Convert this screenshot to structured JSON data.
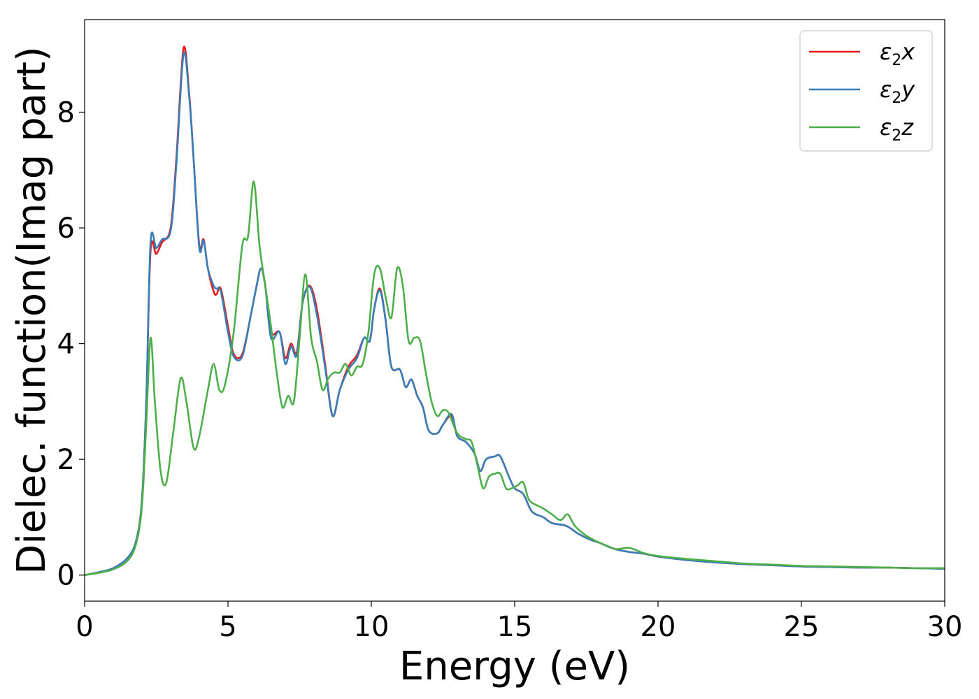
{
  "chart_data": {
    "type": "line",
    "xlabel": "Energy (eV)",
    "ylabel": "Dielec. function(Imag part)",
    "xlim": [
      0,
      30
    ],
    "ylim": [
      -0.45,
      9.6
    ],
    "x_ticks": [
      0,
      5,
      10,
      15,
      20,
      25,
      30
    ],
    "y_ticks": [
      0,
      2,
      4,
      6,
      8
    ],
    "grid": false,
    "legend_position": "top-right",
    "series": [
      {
        "name": "ε2x",
        "legend_main": "ε",
        "legend_sub": "2",
        "legend_tail": "x",
        "color": "#e41a1c",
        "points": [
          [
            0,
            0
          ],
          [
            0.5,
            0.05
          ],
          [
            1.0,
            0.12
          ],
          [
            1.5,
            0.3
          ],
          [
            1.8,
            0.6
          ],
          [
            2.0,
            1.3
          ],
          [
            2.15,
            3.0
          ],
          [
            2.3,
            5.6
          ],
          [
            2.5,
            5.55
          ],
          [
            2.7,
            5.75
          ],
          [
            3.0,
            6.0
          ],
          [
            3.2,
            7.2
          ],
          [
            3.45,
            9.1
          ],
          [
            3.65,
            8.3
          ],
          [
            3.8,
            7.2
          ],
          [
            4.0,
            5.7
          ],
          [
            4.15,
            5.8
          ],
          [
            4.3,
            5.3
          ],
          [
            4.5,
            4.9
          ],
          [
            4.6,
            4.85
          ],
          [
            4.75,
            4.95
          ],
          [
            5.0,
            4.3
          ],
          [
            5.2,
            3.82
          ],
          [
            5.5,
            3.82
          ],
          [
            5.8,
            4.5
          ],
          [
            6.0,
            5.0
          ],
          [
            6.15,
            5.3
          ],
          [
            6.3,
            5.0
          ],
          [
            6.5,
            4.2
          ],
          [
            6.8,
            4.2
          ],
          [
            7.0,
            3.75
          ],
          [
            7.2,
            4.0
          ],
          [
            7.4,
            3.85
          ],
          [
            7.6,
            4.7
          ],
          [
            7.85,
            5.0
          ],
          [
            8.1,
            4.6
          ],
          [
            8.4,
            3.6
          ],
          [
            8.65,
            2.75
          ],
          [
            8.9,
            3.2
          ],
          [
            9.2,
            3.6
          ],
          [
            9.5,
            3.8
          ],
          [
            9.75,
            4.1
          ],
          [
            9.95,
            4.05
          ],
          [
            10.1,
            4.6
          ],
          [
            10.3,
            4.95
          ],
          [
            10.5,
            4.4
          ],
          [
            10.7,
            3.6
          ],
          [
            11.0,
            3.55
          ],
          [
            11.2,
            3.25
          ],
          [
            11.4,
            3.38
          ],
          [
            11.6,
            3.1
          ],
          [
            11.8,
            2.9
          ],
          [
            12.0,
            2.5
          ],
          [
            12.3,
            2.45
          ],
          [
            12.5,
            2.6
          ],
          [
            12.8,
            2.75
          ],
          [
            13.0,
            2.4
          ],
          [
            13.3,
            2.3
          ],
          [
            13.6,
            2.1
          ],
          [
            13.8,
            1.8
          ],
          [
            14.0,
            2.0
          ],
          [
            14.3,
            2.05
          ],
          [
            14.5,
            2.05
          ],
          [
            14.8,
            1.7
          ],
          [
            15.0,
            1.5
          ],
          [
            15.3,
            1.4
          ],
          [
            15.6,
            1.1
          ],
          [
            16.0,
            1.0
          ],
          [
            16.3,
            0.9
          ],
          [
            16.8,
            0.85
          ],
          [
            17.2,
            0.72
          ],
          [
            17.6,
            0.62
          ],
          [
            18.0,
            0.55
          ],
          [
            18.5,
            0.45
          ],
          [
            19.0,
            0.4
          ],
          [
            19.5,
            0.37
          ],
          [
            20.0,
            0.32
          ],
          [
            21.0,
            0.26
          ],
          [
            22.0,
            0.22
          ],
          [
            23.0,
            0.19
          ],
          [
            24.0,
            0.17
          ],
          [
            25.0,
            0.15
          ],
          [
            26.0,
            0.14
          ],
          [
            27.0,
            0.13
          ],
          [
            28.0,
            0.13
          ],
          [
            29.0,
            0.12
          ],
          [
            30.0,
            0.11
          ]
        ]
      },
      {
        "name": "ε2y",
        "legend_main": "ε",
        "legend_sub": "2",
        "legend_tail": "y",
        "color": "#377eb8",
        "points": [
          [
            0,
            0
          ],
          [
            0.5,
            0.05
          ],
          [
            1.0,
            0.12
          ],
          [
            1.5,
            0.3
          ],
          [
            1.8,
            0.6
          ],
          [
            2.0,
            1.3
          ],
          [
            2.15,
            3.0
          ],
          [
            2.3,
            5.75
          ],
          [
            2.5,
            5.65
          ],
          [
            2.7,
            5.8
          ],
          [
            3.0,
            5.95
          ],
          [
            3.2,
            7.1
          ],
          [
            3.45,
            9.0
          ],
          [
            3.65,
            8.25
          ],
          [
            3.8,
            7.2
          ],
          [
            4.0,
            5.65
          ],
          [
            4.15,
            5.78
          ],
          [
            4.3,
            5.3
          ],
          [
            4.5,
            5.0
          ],
          [
            4.6,
            4.95
          ],
          [
            4.75,
            4.9
          ],
          [
            5.0,
            4.2
          ],
          [
            5.2,
            3.78
          ],
          [
            5.5,
            3.78
          ],
          [
            5.8,
            4.5
          ],
          [
            6.0,
            5.0
          ],
          [
            6.15,
            5.3
          ],
          [
            6.3,
            5.0
          ],
          [
            6.5,
            4.1
          ],
          [
            6.8,
            4.2
          ],
          [
            7.0,
            3.65
          ],
          [
            7.2,
            3.95
          ],
          [
            7.4,
            3.8
          ],
          [
            7.6,
            4.7
          ],
          [
            7.85,
            4.98
          ],
          [
            8.1,
            4.5
          ],
          [
            8.4,
            3.55
          ],
          [
            8.65,
            2.75
          ],
          [
            8.9,
            3.2
          ],
          [
            9.2,
            3.55
          ],
          [
            9.5,
            3.75
          ],
          [
            9.75,
            4.1
          ],
          [
            9.95,
            4.05
          ],
          [
            10.1,
            4.6
          ],
          [
            10.3,
            4.92
          ],
          [
            10.5,
            4.4
          ],
          [
            10.7,
            3.6
          ],
          [
            11.0,
            3.55
          ],
          [
            11.2,
            3.25
          ],
          [
            11.4,
            3.38
          ],
          [
            11.6,
            3.1
          ],
          [
            11.8,
            2.9
          ],
          [
            12.0,
            2.5
          ],
          [
            12.3,
            2.45
          ],
          [
            12.5,
            2.6
          ],
          [
            12.8,
            2.78
          ],
          [
            13.0,
            2.4
          ],
          [
            13.3,
            2.3
          ],
          [
            13.6,
            2.1
          ],
          [
            13.8,
            1.8
          ],
          [
            14.0,
            2.0
          ],
          [
            14.3,
            2.05
          ],
          [
            14.5,
            2.05
          ],
          [
            14.8,
            1.7
          ],
          [
            15.0,
            1.5
          ],
          [
            15.3,
            1.4
          ],
          [
            15.6,
            1.1
          ],
          [
            16.0,
            1.0
          ],
          [
            16.3,
            0.9
          ],
          [
            16.8,
            0.85
          ],
          [
            17.2,
            0.72
          ],
          [
            17.6,
            0.62
          ],
          [
            18.0,
            0.55
          ],
          [
            18.5,
            0.45
          ],
          [
            19.0,
            0.4
          ],
          [
            19.5,
            0.37
          ],
          [
            20.0,
            0.32
          ],
          [
            21.0,
            0.26
          ],
          [
            22.0,
            0.22
          ],
          [
            23.0,
            0.19
          ],
          [
            24.0,
            0.17
          ],
          [
            25.0,
            0.15
          ],
          [
            26.0,
            0.14
          ],
          [
            27.0,
            0.13
          ],
          [
            28.0,
            0.13
          ],
          [
            29.0,
            0.12
          ],
          [
            30.0,
            0.11
          ]
        ]
      },
      {
        "name": "ε2z",
        "legend_main": "ε",
        "legend_sub": "2",
        "legend_tail": "z",
        "color": "#4daf4a",
        "points": [
          [
            0,
            0
          ],
          [
            0.5,
            0.04
          ],
          [
            1.0,
            0.1
          ],
          [
            1.5,
            0.25
          ],
          [
            1.8,
            0.55
          ],
          [
            2.0,
            1.2
          ],
          [
            2.15,
            2.6
          ],
          [
            2.3,
            4.1
          ],
          [
            2.45,
            3.0
          ],
          [
            2.65,
            1.8
          ],
          [
            2.85,
            1.6
          ],
          [
            3.1,
            2.5
          ],
          [
            3.35,
            3.4
          ],
          [
            3.55,
            3.0
          ],
          [
            3.8,
            2.2
          ],
          [
            4.0,
            2.4
          ],
          [
            4.3,
            3.2
          ],
          [
            4.5,
            3.65
          ],
          [
            4.7,
            3.2
          ],
          [
            4.9,
            3.3
          ],
          [
            5.2,
            4.2
          ],
          [
            5.5,
            5.7
          ],
          [
            5.7,
            5.85
          ],
          [
            5.9,
            6.8
          ],
          [
            6.1,
            5.7
          ],
          [
            6.3,
            5.0
          ],
          [
            6.5,
            4.3
          ],
          [
            6.7,
            3.5
          ],
          [
            6.9,
            2.9
          ],
          [
            7.1,
            3.1
          ],
          [
            7.3,
            3.0
          ],
          [
            7.5,
            4.1
          ],
          [
            7.7,
            5.2
          ],
          [
            7.9,
            4.1
          ],
          [
            8.1,
            3.7
          ],
          [
            8.3,
            3.2
          ],
          [
            8.5,
            3.4
          ],
          [
            8.7,
            3.5
          ],
          [
            8.9,
            3.5
          ],
          [
            9.1,
            3.65
          ],
          [
            9.3,
            3.45
          ],
          [
            9.5,
            3.6
          ],
          [
            9.7,
            3.65
          ],
          [
            9.9,
            4.2
          ],
          [
            10.1,
            5.2
          ],
          [
            10.3,
            5.3
          ],
          [
            10.5,
            4.8
          ],
          [
            10.7,
            4.45
          ],
          [
            10.9,
            5.3
          ],
          [
            11.1,
            5.0
          ],
          [
            11.3,
            4.05
          ],
          [
            11.5,
            4.1
          ],
          [
            11.7,
            4.05
          ],
          [
            11.9,
            3.5
          ],
          [
            12.1,
            3.0
          ],
          [
            12.3,
            2.75
          ],
          [
            12.5,
            2.85
          ],
          [
            12.7,
            2.8
          ],
          [
            13.0,
            2.45
          ],
          [
            13.3,
            2.35
          ],
          [
            13.5,
            2.3
          ],
          [
            13.7,
            1.9
          ],
          [
            13.9,
            1.5
          ],
          [
            14.1,
            1.7
          ],
          [
            14.3,
            1.75
          ],
          [
            14.5,
            1.75
          ],
          [
            14.7,
            1.5
          ],
          [
            14.9,
            1.5
          ],
          [
            15.1,
            1.55
          ],
          [
            15.3,
            1.6
          ],
          [
            15.5,
            1.3
          ],
          [
            15.8,
            1.2
          ],
          [
            16.0,
            1.15
          ],
          [
            16.3,
            1.05
          ],
          [
            16.6,
            0.95
          ],
          [
            16.85,
            1.05
          ],
          [
            17.1,
            0.85
          ],
          [
            17.5,
            0.68
          ],
          [
            18.0,
            0.55
          ],
          [
            18.5,
            0.45
          ],
          [
            19.0,
            0.47
          ],
          [
            19.5,
            0.38
          ],
          [
            20.0,
            0.33
          ],
          [
            21.0,
            0.28
          ],
          [
            22.0,
            0.24
          ],
          [
            23.0,
            0.2
          ],
          [
            24.0,
            0.18
          ],
          [
            25.0,
            0.16
          ],
          [
            26.0,
            0.15
          ],
          [
            27.0,
            0.14
          ],
          [
            28.0,
            0.13
          ],
          [
            29.0,
            0.12
          ],
          [
            30.0,
            0.12
          ]
        ]
      }
    ]
  }
}
